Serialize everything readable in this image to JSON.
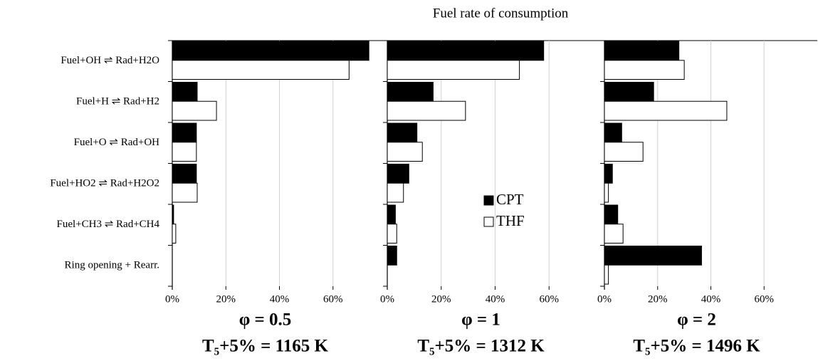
{
  "chart_data": [
    {
      "type": "bar",
      "orientation": "horizontal",
      "categories": [
        "Fuel+OH ⇌ Rad+H2O",
        "Fuel+H ⇌ Rad+H2",
        "Fuel+O ⇌ Rad+OH",
        "Fuel+HO2 ⇌ Rad+H2O2",
        "Fuel+CH3 ⇌ Rad+CH4",
        "Ring opening + Rearr."
      ],
      "series": [
        {
          "color": "#000000",
          "values": [
            73.4,
            9.3,
            9.0,
            9.0,
            0.5,
            0
          ]
        },
        {
          "color": "#ffffff",
          "values": [
            66.0,
            16.5,
            9.0,
            9.3,
            1.3,
            0
          ]
        }
      ],
      "xlim": [
        0,
        80
      ],
      "xticks": [
        {
          "value": 0,
          "label": "0%"
        },
        {
          "value": 20,
          "label": "20%"
        },
        {
          "value": 40,
          "label": "40%"
        },
        {
          "value": 60,
          "label": "60%"
        }
      ],
      "grid": true,
      "phi_label": "φ = 0.5",
      "temperature_label": "T₅+5% = 1165 K"
    },
    {
      "type": "bar",
      "orientation": "horizontal",
      "title": "Fuel rate of consumption",
      "categories": [
        null,
        null,
        null,
        null,
        null,
        null
      ],
      "series": [
        {
          "name": "CPT",
          "color": "#000000",
          "values": [
            58.0,
            17.0,
            11.0,
            8.0,
            3.0,
            3.5
          ]
        },
        {
          "name": "THF",
          "color": "#ffffff",
          "values": [
            49.0,
            29.0,
            13.0,
            6.0,
            3.5,
            0
          ]
        }
      ],
      "xlim": [
        0,
        80
      ],
      "xticks": [
        {
          "value": 0,
          "label": "0%"
        },
        {
          "value": 20,
          "label": "20%"
        },
        {
          "value": 40,
          "label": "40%"
        },
        {
          "value": 60,
          "label": "60%"
        }
      ],
      "grid": true,
      "legend": "center",
      "phi_label": "φ = 1",
      "temperature_label": "T₅+5% = 1312 K"
    },
    {
      "type": "bar",
      "orientation": "horizontal",
      "categories": [
        null,
        null,
        null,
        null,
        null,
        null
      ],
      "series": [
        {
          "color": "#000000",
          "values": [
            28.0,
            18.5,
            6.5,
            3.0,
            5.0,
            36.5
          ]
        },
        {
          "color": "#ffffff",
          "values": [
            30.0,
            46.0,
            14.5,
            1.5,
            7.0,
            1.5
          ]
        }
      ],
      "xlim": [
        0,
        80
      ],
      "xticks": [
        {
          "value": 0,
          "label": "0%"
        },
        {
          "value": 20,
          "label": "20%"
        },
        {
          "value": 40,
          "label": "40%"
        },
        {
          "value": 60,
          "label": "60%"
        }
      ],
      "grid": true,
      "phi_label": "φ = 2",
      "temperature_label": "T₅+5% = 1496 K"
    }
  ]
}
